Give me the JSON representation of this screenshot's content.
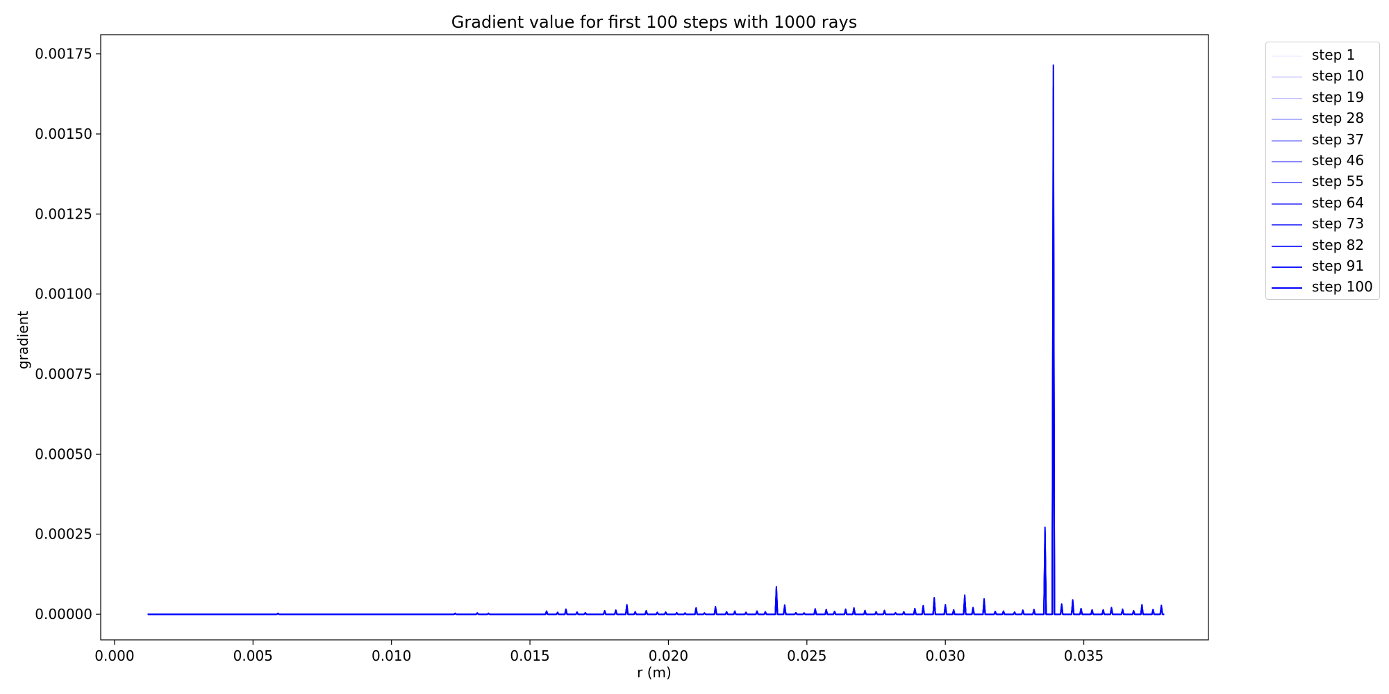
{
  "chart_data": {
    "type": "line",
    "title": "Gradient value for first 100 steps with 1000 rays",
    "xlabel": "r (m)",
    "ylabel": "gradient",
    "xlim": [
      -0.0005,
      0.0395
    ],
    "ylim": [
      -8e-05,
      0.00181
    ],
    "x_ticks": [
      0.0,
      0.005,
      0.01,
      0.015,
      0.02,
      0.025,
      0.03,
      0.035
    ],
    "x_tick_labels": [
      "0.000",
      "0.005",
      "0.010",
      "0.015",
      "0.020",
      "0.025",
      "0.030",
      "0.035"
    ],
    "y_ticks": [
      0,
      0.00025,
      0.0005,
      0.00075,
      0.001,
      0.00125,
      0.0015,
      0.00175
    ],
    "y_tick_labels": [
      "0.00000",
      "0.00025",
      "0.00050",
      "0.00075",
      "0.00100",
      "0.00125",
      "0.00150",
      "0.00175"
    ],
    "grid": false,
    "legend_position": "outside-top-right",
    "line_color": "#0000ff",
    "x_range": [
      0.0012,
      0.0379
    ],
    "series": [
      {
        "name": "step 1",
        "opacity": 0.05
      },
      {
        "name": "step 10",
        "opacity": 0.13
      },
      {
        "name": "step 19",
        "opacity": 0.21
      },
      {
        "name": "step 28",
        "opacity": 0.3
      },
      {
        "name": "step 37",
        "opacity": 0.38
      },
      {
        "name": "step 46",
        "opacity": 0.46
      },
      {
        "name": "step 55",
        "opacity": 0.55
      },
      {
        "name": "step 64",
        "opacity": 0.63
      },
      {
        "name": "step 73",
        "opacity": 0.71
      },
      {
        "name": "step 82",
        "opacity": 0.8
      },
      {
        "name": "step 91",
        "opacity": 0.9
      },
      {
        "name": "step 100",
        "opacity": 1.0
      }
    ],
    "peaks": [
      [
        0.0059,
        3e-06
      ],
      [
        0.0123,
        3e-06
      ],
      [
        0.0131,
        4e-06
      ],
      [
        0.0135,
        3e-06
      ],
      [
        0.0156,
        1e-05
      ],
      [
        0.016,
        6e-06
      ],
      [
        0.0163,
        1.6e-05
      ],
      [
        0.0167,
        7e-06
      ],
      [
        0.017,
        5e-06
      ],
      [
        0.0177,
        1.1e-05
      ],
      [
        0.0181,
        1.3e-05
      ],
      [
        0.0185,
        3e-05
      ],
      [
        0.0188,
        8e-06
      ],
      [
        0.0192,
        1.1e-05
      ],
      [
        0.0196,
        6e-06
      ],
      [
        0.0199,
        7e-06
      ],
      [
        0.0203,
        5e-06
      ],
      [
        0.0206,
        4e-06
      ],
      [
        0.021,
        2e-05
      ],
      [
        0.0213,
        4e-06
      ],
      [
        0.0217,
        2.4e-05
      ],
      [
        0.0221,
        8e-06
      ],
      [
        0.0224,
        1e-05
      ],
      [
        0.0228,
        6e-06
      ],
      [
        0.0232,
        1e-05
      ],
      [
        0.0235,
        8e-06
      ],
      [
        0.0239,
        8.6e-05
      ],
      [
        0.0242,
        2.9e-05
      ],
      [
        0.0246,
        5e-06
      ],
      [
        0.0249,
        4e-06
      ],
      [
        0.0253,
        1.7e-05
      ],
      [
        0.0257,
        1.5e-05
      ],
      [
        0.026,
        9e-06
      ],
      [
        0.0264,
        1.6e-05
      ],
      [
        0.0267,
        2e-05
      ],
      [
        0.0271,
        1.2e-05
      ],
      [
        0.0275,
        8e-06
      ],
      [
        0.0278,
        1.2e-05
      ],
      [
        0.0282,
        5e-06
      ],
      [
        0.0285,
        8e-06
      ],
      [
        0.0289,
        1.8e-05
      ],
      [
        0.0292,
        2.7e-05
      ],
      [
        0.0296,
        5.2e-05
      ],
      [
        0.03,
        3e-05
      ],
      [
        0.0303,
        1.4e-05
      ],
      [
        0.0307,
        6e-05
      ],
      [
        0.031,
        2.1e-05
      ],
      [
        0.0314,
        4.8e-05
      ],
      [
        0.0318,
        9e-06
      ],
      [
        0.0321,
        1e-05
      ],
      [
        0.0325,
        7e-06
      ],
      [
        0.0328,
        1.3e-05
      ],
      [
        0.0332,
        1.5e-05
      ],
      [
        0.0336,
        0.000272
      ],
      [
        0.0339,
        0.001715
      ],
      [
        0.0342,
        3.2e-05
      ],
      [
        0.0346,
        4.5e-05
      ],
      [
        0.0349,
        1.8e-05
      ],
      [
        0.0353,
        1.4e-05
      ],
      [
        0.0357,
        1.4e-05
      ],
      [
        0.036,
        2.1e-05
      ],
      [
        0.0364,
        1.6e-05
      ],
      [
        0.0368,
        1.1e-05
      ],
      [
        0.0371,
        3e-05
      ],
      [
        0.0375,
        1.5e-05
      ],
      [
        0.0378,
        2.8e-05
      ]
    ]
  }
}
